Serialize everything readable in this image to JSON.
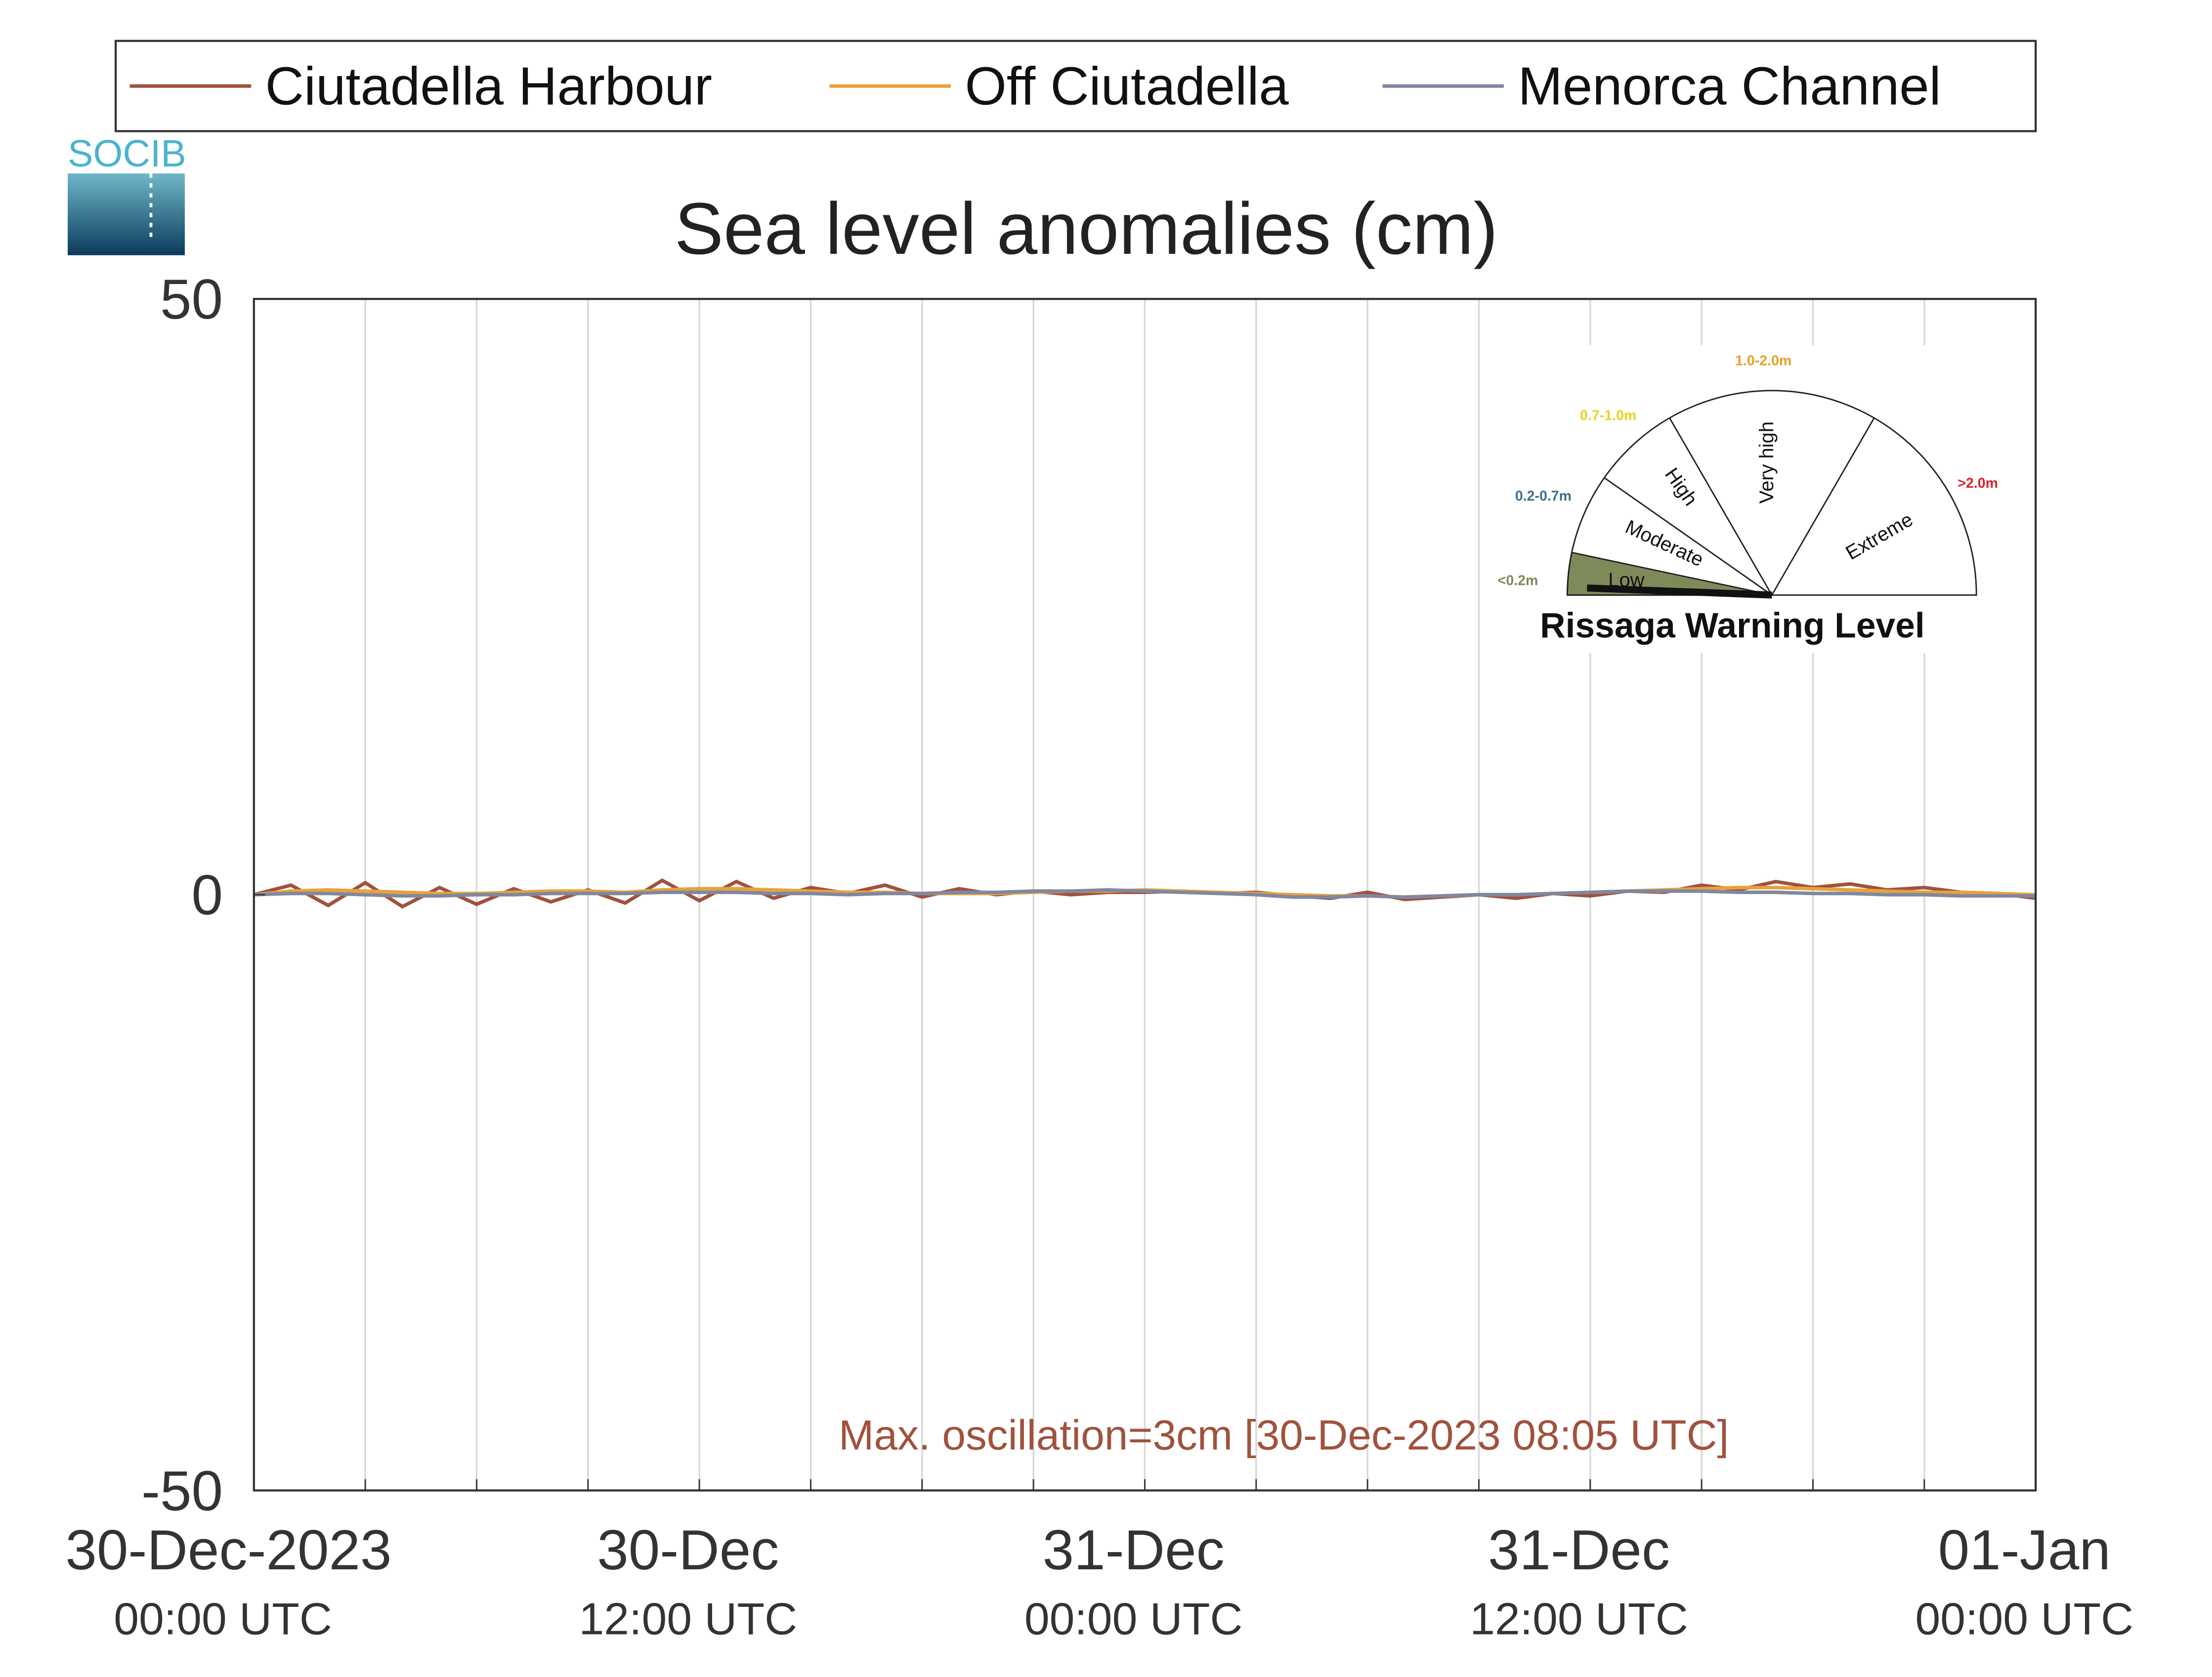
{
  "chart_data": {
    "type": "line",
    "title": "Sea level anomalies (cm)",
    "logo": "SOCIB",
    "annotation": "Max. oscillation=3cm [30-Dec-2023 08:05 UTC]",
    "annotation_color": "#a0523d",
    "x": [
      0,
      1,
      2,
      3,
      4,
      5,
      6,
      7,
      8,
      9,
      10,
      11,
      12,
      13,
      14,
      15,
      16,
      17,
      18,
      19,
      20,
      21,
      22,
      23,
      24,
      25,
      26,
      27,
      28,
      29,
      30,
      31,
      32,
      33,
      34,
      35,
      36,
      37,
      38,
      39,
      40,
      41,
      42,
      43,
      44,
      45,
      46,
      47,
      48
    ],
    "xlim": [
      0,
      48
    ],
    "xticks": [
      {
        "value": 0,
        "label": [
          "30-Dec-2023",
          "00:00 UTC"
        ]
      },
      {
        "value": 12,
        "label": [
          "30-Dec",
          "12:00 UTC"
        ]
      },
      {
        "value": 24,
        "label": [
          "31-Dec",
          "00:00 UTC"
        ]
      },
      {
        "value": 36,
        "label": [
          "31-Dec",
          "12:00 UTC"
        ]
      },
      {
        "value": 48,
        "label": [
          "01-Jan",
          "00:00 UTC"
        ]
      }
    ],
    "xminor_ticks": [
      3,
      6,
      9,
      15,
      18,
      21,
      27,
      30,
      33,
      39,
      42,
      45
    ],
    "ylim": [
      -50,
      50
    ],
    "yticks": [
      -50,
      0,
      50
    ],
    "grid": true,
    "series": [
      {
        "name": "Ciutadella Harbour",
        "color": "#a0523d",
        "values": [
          0,
          0.8,
          -0.9,
          1,
          -1,
          0.6,
          -0.8,
          0.5,
          -0.6,
          0.4,
          -0.7,
          1.2,
          -0.5,
          1.1,
          -0.3,
          0.6,
          0.1,
          0.8,
          -0.2,
          0.5,
          0,
          0.3,
          0,
          0.2,
          0.2,
          0.3,
          0.1,
          0.2,
          -0.1,
          -0.3,
          0.2,
          -0.4,
          -0.2,
          0,
          -0.3,
          0.1,
          -0.1,
          0.3,
          0.2,
          0.8,
          0.4,
          1.1,
          0.6,
          0.9,
          0.4,
          0.6,
          0.2,
          0.1,
          -0.3
        ]
      },
      {
        "name": "Off Ciutadella",
        "color": "#e8a23a",
        "values": [
          0,
          0.3,
          0.4,
          0.3,
          0.2,
          0.1,
          0.1,
          0.2,
          0.3,
          0.3,
          0.2,
          0.4,
          0.5,
          0.5,
          0.4,
          0.3,
          0.2,
          0.2,
          0.1,
          0.1,
          0.1,
          0.2,
          0.3,
          0.3,
          0.4,
          0.3,
          0.2,
          0.1,
          0,
          -0.1,
          -0.1,
          -0.2,
          -0.1,
          0,
          0,
          0.1,
          0.2,
          0.3,
          0.4,
          0.5,
          0.6,
          0.6,
          0.5,
          0.4,
          0.3,
          0.2,
          0.2,
          0.1,
          0
        ]
      },
      {
        "name": "Menorca Channel",
        "color": "#8088a0",
        "values": [
          0,
          0.1,
          0.1,
          0,
          -0.1,
          -0.1,
          0,
          0,
          0.1,
          0.1,
          0.1,
          0.2,
          0.2,
          0.2,
          0.1,
          0.1,
          0,
          0.1,
          0.1,
          0.2,
          0.2,
          0.3,
          0.3,
          0.4,
          0.3,
          0.2,
          0.1,
          0,
          -0.2,
          -0.2,
          -0.1,
          -0.2,
          -0.1,
          0,
          0,
          0.1,
          0.2,
          0.3,
          0.3,
          0.3,
          0.2,
          0.2,
          0.1,
          0.1,
          0,
          0,
          -0.1,
          -0.1,
          -0.1
        ]
      }
    ],
    "gauge": {
      "title": "Rissaga Warning Level",
      "levels": [
        {
          "name": "Low",
          "range": "<0.2m",
          "color": "#7f8a5a"
        },
        {
          "name": "Moderate",
          "range": "0.2-0.7m",
          "color": "#3e6f8a"
        },
        {
          "name": "High",
          "range": "0.7-1.0m",
          "color": "#e8d21a"
        },
        {
          "name": "Very high",
          "range": "1.0-2.0m",
          "color": "#e8a020"
        },
        {
          "name": "Extreme",
          "range": ">2.0m",
          "color": "#d8202a"
        }
      ]
    }
  }
}
